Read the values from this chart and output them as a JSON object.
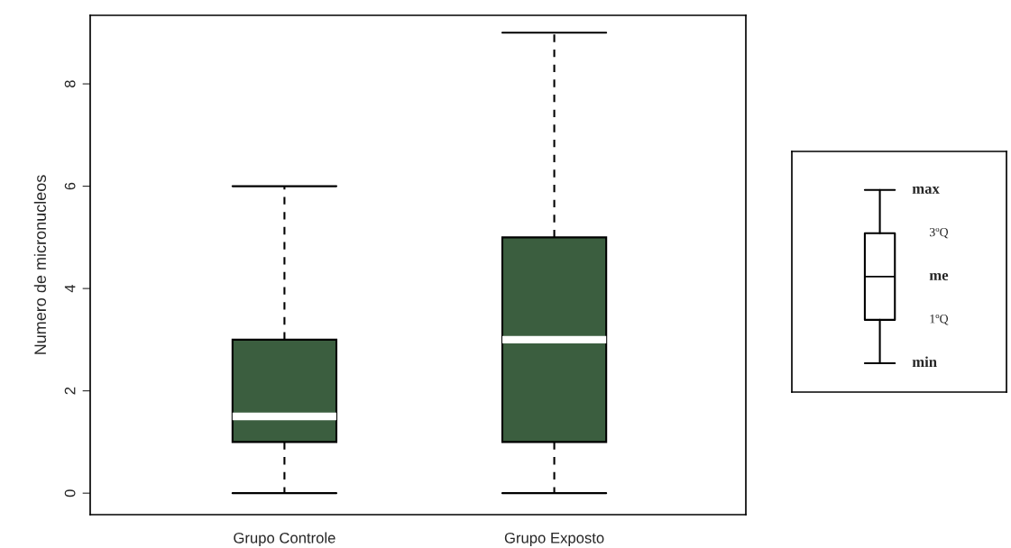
{
  "chart_data": {
    "type": "box",
    "ylabel": "Numero de micronucleos",
    "categories": [
      "Grupo Controle",
      "Grupo Exposto"
    ],
    "boxes": [
      {
        "low": 0,
        "q1": 1,
        "median": 1.5,
        "q3": 3,
        "high": 6
      },
      {
        "low": 0,
        "q1": 1,
        "median": 3,
        "q3": 5,
        "high": 9
      }
    ],
    "color": "#3b5e3f",
    "ylim": [
      -0.42,
      9.34
    ],
    "yticks": [
      0,
      2,
      4,
      6,
      8
    ],
    "grid": false,
    "annotations": [
      "max",
      "3ºQ",
      "me",
      "1ºQ",
      "min"
    ]
  }
}
